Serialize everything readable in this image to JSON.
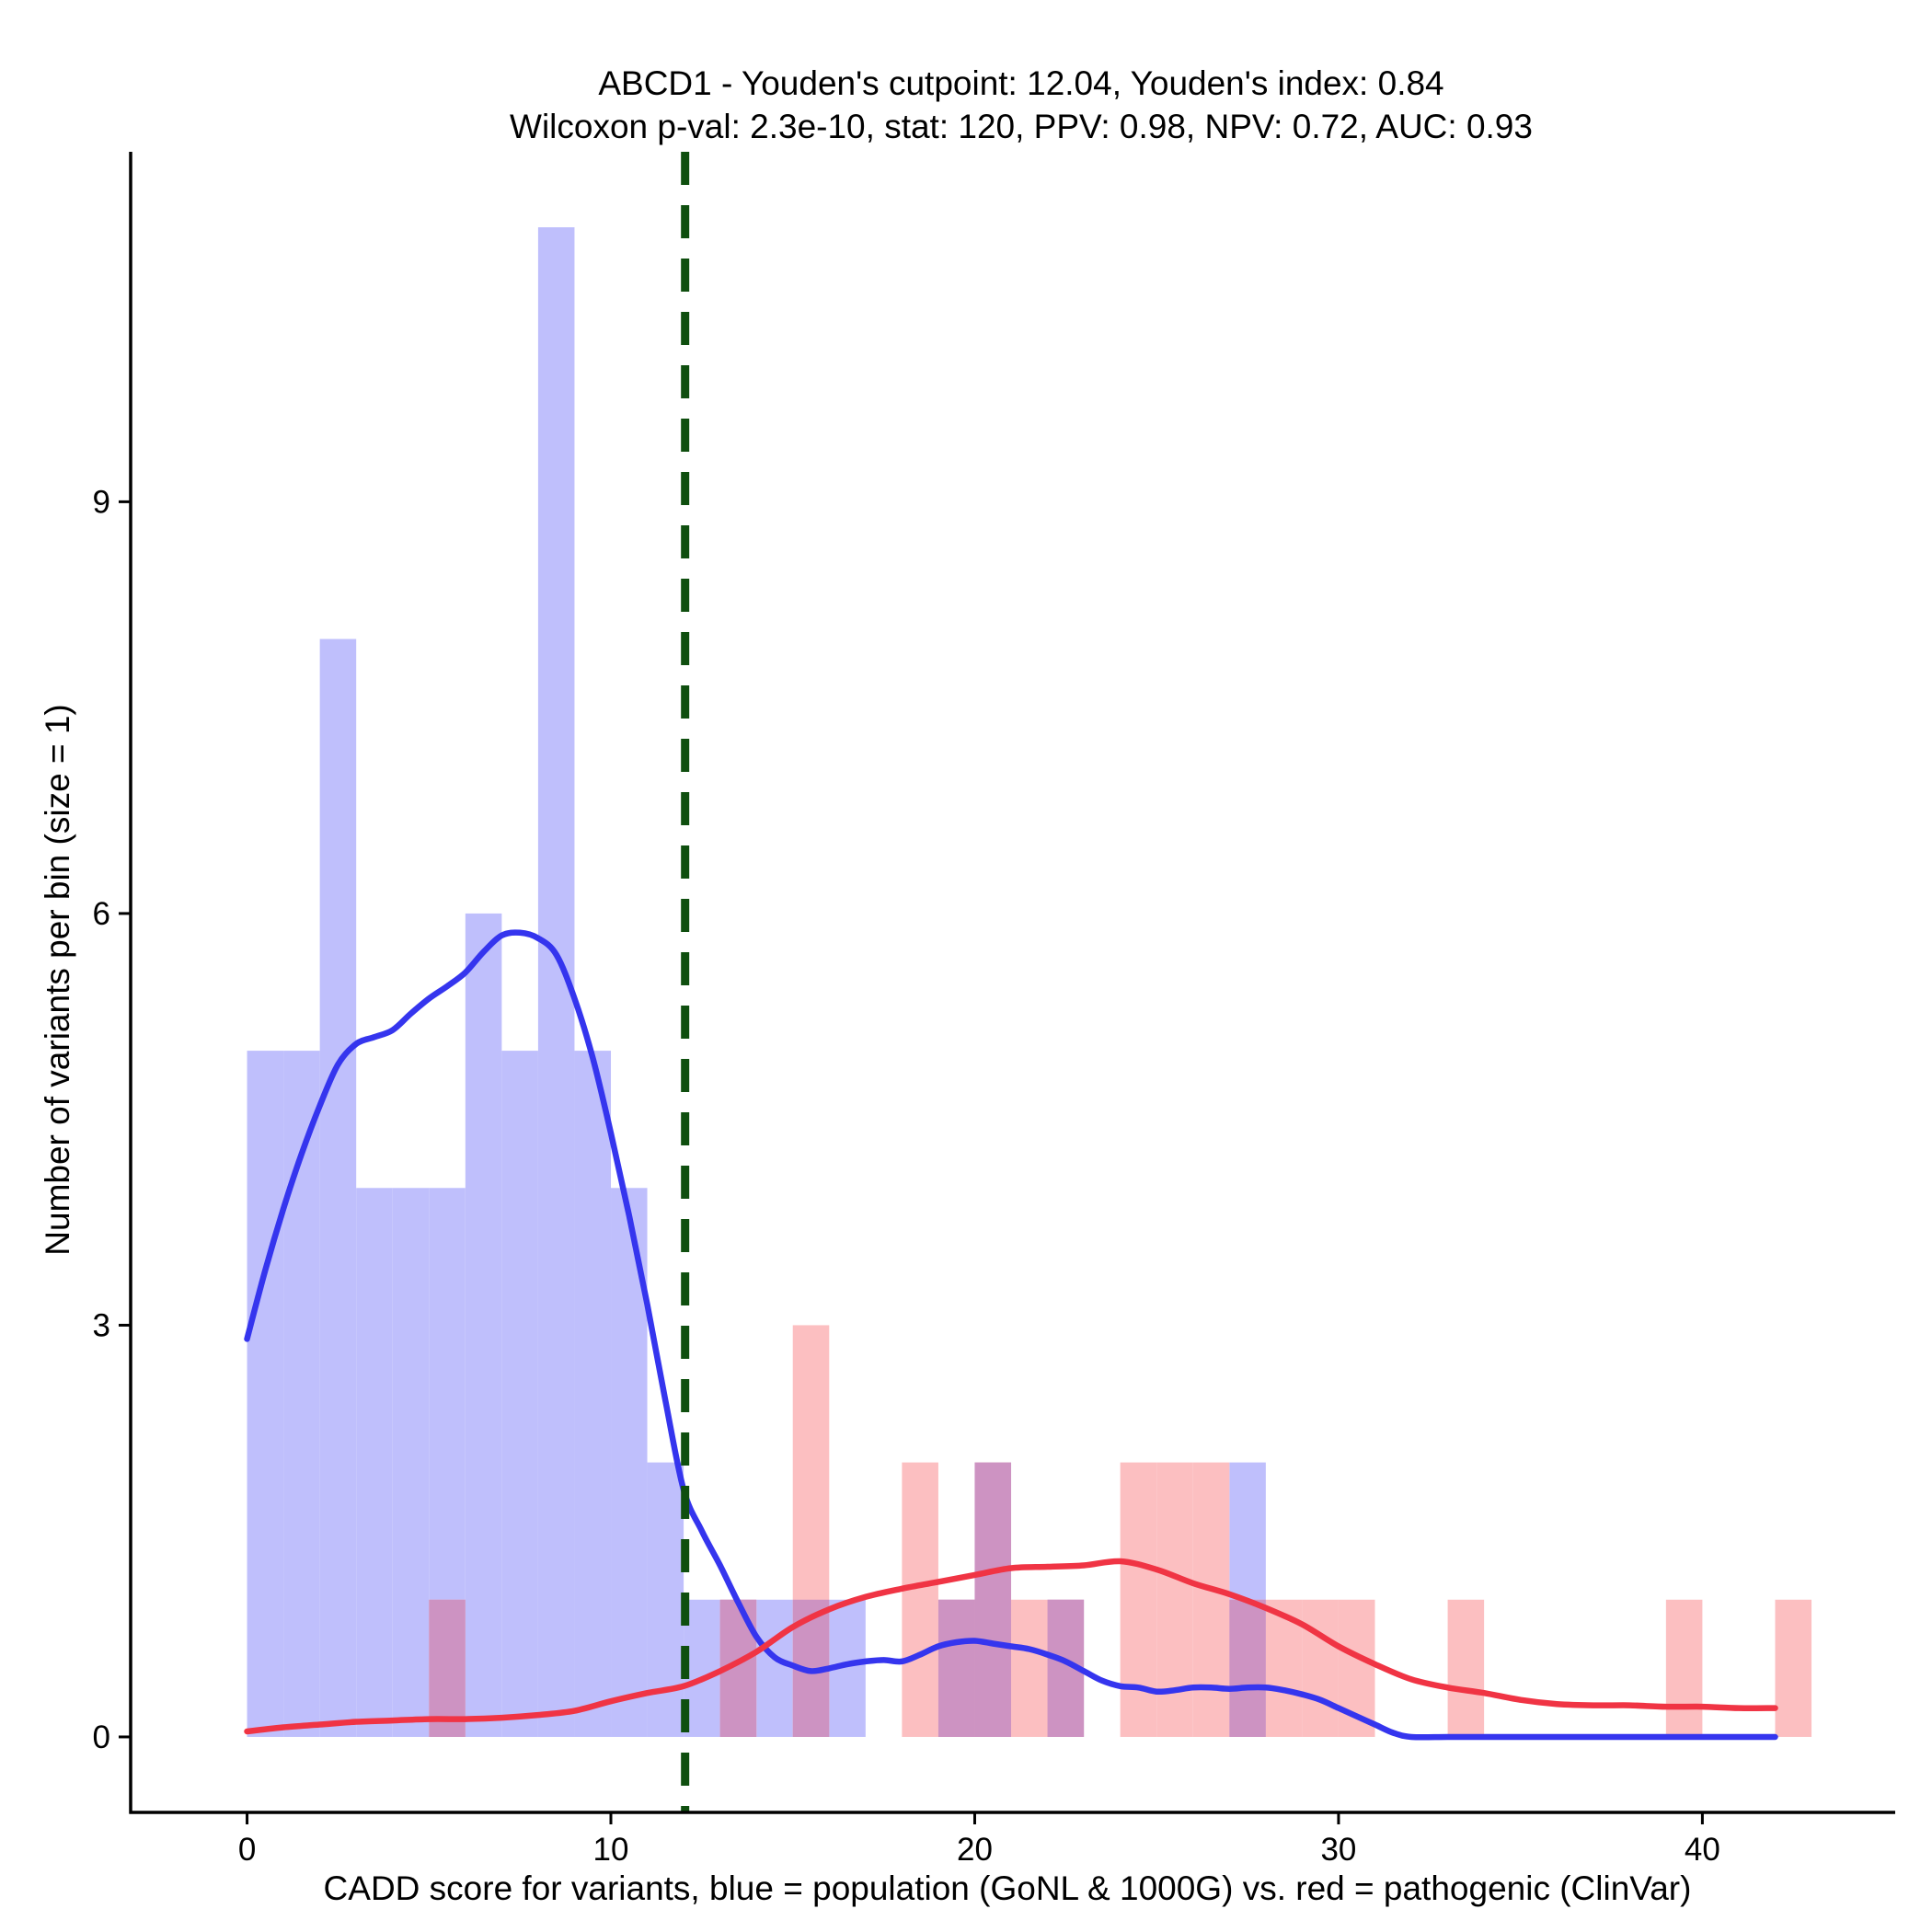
{
  "chart_data": {
    "type": "histogram",
    "title_line1": "ABCD1 - Youden's cutpoint: 12.04, Youden's index: 0.84",
    "title_line2": "Wilcoxon p-val: 2.3e-10, stat: 120, PPV: 0.98, NPV: 0.72, AUC: 0.93",
    "xlabel": "CADD score for variants, blue = population (GoNL & 1000G) vs. red = pathogenic (ClinVar)",
    "ylabel": "Number of variants per bin (size = 1)",
    "xlim": [
      -3.2,
      45.3
    ],
    "ylim": [
      -0.55,
      11.55
    ],
    "x_ticks": [
      0,
      10,
      20,
      30,
      40
    ],
    "y_ticks": [
      0,
      3,
      6,
      9
    ],
    "bin_width": 1,
    "cutpoint": 12.04,
    "colors": {
      "population_bar": "#bfbffc",
      "pathogenic_bar": "#fcbfc1",
      "overlap_bar": "#cd93c2",
      "population_curve": "#3535ee",
      "pathogenic_curve": "#f03444",
      "cutpoint_line": "#0f4f0f",
      "axis": "#000000"
    },
    "series": [
      {
        "name": "population (GoNL & 1000G)",
        "bins": [
          {
            "x": 0,
            "count": 5
          },
          {
            "x": 1,
            "count": 5
          },
          {
            "x": 2,
            "count": 8
          },
          {
            "x": 3,
            "count": 4
          },
          {
            "x": 4,
            "count": 4
          },
          {
            "x": 5,
            "count": 4
          },
          {
            "x": 6,
            "count": 6
          },
          {
            "x": 7,
            "count": 5
          },
          {
            "x": 8,
            "count": 11
          },
          {
            "x": 9,
            "count": 5
          },
          {
            "x": 10,
            "count": 4
          },
          {
            "x": 11,
            "count": 2
          },
          {
            "x": 12,
            "count": 1
          },
          {
            "x": 13,
            "count": 1
          },
          {
            "x": 14,
            "count": 1
          },
          {
            "x": 15,
            "count": 1
          },
          {
            "x": 16,
            "count": 1
          },
          {
            "x": 19,
            "count": 1
          },
          {
            "x": 20,
            "count": 2
          },
          {
            "x": 22,
            "count": 1
          },
          {
            "x": 27,
            "count": 2
          }
        ]
      },
      {
        "name": "pathogenic (ClinVar)",
        "bins": [
          {
            "x": 5,
            "count": 1
          },
          {
            "x": 13,
            "count": 1
          },
          {
            "x": 15,
            "count": 3
          },
          {
            "x": 18,
            "count": 2
          },
          {
            "x": 19,
            "count": 1
          },
          {
            "x": 20,
            "count": 2
          },
          {
            "x": 21,
            "count": 1
          },
          {
            "x": 22,
            "count": 1
          },
          {
            "x": 24,
            "count": 2
          },
          {
            "x": 25,
            "count": 2
          },
          {
            "x": 26,
            "count": 2
          },
          {
            "x": 27,
            "count": 1
          },
          {
            "x": 28,
            "count": 1
          },
          {
            "x": 29,
            "count": 1
          },
          {
            "x": 30,
            "count": 1
          },
          {
            "x": 33,
            "count": 1
          },
          {
            "x": 39,
            "count": 1
          },
          {
            "x": 42,
            "count": 1
          }
        ]
      }
    ],
    "density_curves": [
      {
        "name": "population density",
        "points": [
          [
            0,
            2.9
          ],
          [
            0.5,
            3.4
          ],
          [
            1,
            3.85
          ],
          [
            1.5,
            4.25
          ],
          [
            2,
            4.6
          ],
          [
            2.5,
            4.9
          ],
          [
            3,
            5.05
          ],
          [
            3.5,
            5.1
          ],
          [
            4,
            5.15
          ],
          [
            4.5,
            5.27
          ],
          [
            5,
            5.38
          ],
          [
            5.5,
            5.47
          ],
          [
            6,
            5.57
          ],
          [
            6.5,
            5.72
          ],
          [
            7,
            5.84
          ],
          [
            7.5,
            5.86
          ],
          [
            8,
            5.82
          ],
          [
            8.5,
            5.7
          ],
          [
            9,
            5.38
          ],
          [
            9.5,
            4.95
          ],
          [
            10,
            4.4
          ],
          [
            10.5,
            3.8
          ],
          [
            11,
            3.15
          ],
          [
            11.5,
            2.45
          ],
          [
            12,
            1.8
          ],
          [
            12.5,
            1.5
          ],
          [
            13,
            1.25
          ],
          [
            13.5,
            0.98
          ],
          [
            14,
            0.73
          ],
          [
            14.5,
            0.58
          ],
          [
            15,
            0.52
          ],
          [
            15.5,
            0.48
          ],
          [
            16,
            0.5
          ],
          [
            16.5,
            0.53
          ],
          [
            17,
            0.55
          ],
          [
            17.5,
            0.56
          ],
          [
            18,
            0.55
          ],
          [
            18.5,
            0.6
          ],
          [
            19,
            0.66
          ],
          [
            19.5,
            0.69
          ],
          [
            20,
            0.7
          ],
          [
            20.5,
            0.68
          ],
          [
            21,
            0.66
          ],
          [
            21.5,
            0.64
          ],
          [
            22,
            0.6
          ],
          [
            22.5,
            0.55
          ],
          [
            23,
            0.48
          ],
          [
            23.5,
            0.41
          ],
          [
            24,
            0.37
          ],
          [
            24.5,
            0.36
          ],
          [
            25,
            0.33
          ],
          [
            25.5,
            0.34
          ],
          [
            26,
            0.36
          ],
          [
            26.5,
            0.36
          ],
          [
            27,
            0.35
          ],
          [
            27.5,
            0.36
          ],
          [
            28,
            0.36
          ],
          [
            28.5,
            0.34
          ],
          [
            29,
            0.31
          ],
          [
            29.5,
            0.27
          ],
          [
            30,
            0.21
          ],
          [
            30.5,
            0.15
          ],
          [
            31,
            0.09
          ],
          [
            31.5,
            0.03
          ],
          [
            32,
            0.0
          ],
          [
            33,
            0.0
          ],
          [
            34,
            0.0
          ],
          [
            35,
            0.0
          ],
          [
            36,
            0.0
          ],
          [
            37,
            0.0
          ],
          [
            38,
            0.0
          ],
          [
            39,
            0.0
          ],
          [
            40,
            0.0
          ],
          [
            41,
            0.0
          ],
          [
            42,
            0.0
          ]
        ]
      },
      {
        "name": "pathogenic density",
        "points": [
          [
            0,
            0.04
          ],
          [
            1,
            0.07
          ],
          [
            2,
            0.09
          ],
          [
            3,
            0.11
          ],
          [
            4,
            0.12
          ],
          [
            5,
            0.13
          ],
          [
            6,
            0.13
          ],
          [
            7,
            0.14
          ],
          [
            8,
            0.16
          ],
          [
            9,
            0.19
          ],
          [
            10,
            0.26
          ],
          [
            11,
            0.32
          ],
          [
            12,
            0.37
          ],
          [
            13,
            0.48
          ],
          [
            14,
            0.62
          ],
          [
            15,
            0.8
          ],
          [
            16,
            0.93
          ],
          [
            17,
            1.02
          ],
          [
            18,
            1.08
          ],
          [
            19,
            1.13
          ],
          [
            20,
            1.18
          ],
          [
            21,
            1.23
          ],
          [
            22,
            1.24
          ],
          [
            23,
            1.25
          ],
          [
            24,
            1.28
          ],
          [
            25,
            1.22
          ],
          [
            26,
            1.12
          ],
          [
            27,
            1.04
          ],
          [
            28,
            0.94
          ],
          [
            29,
            0.82
          ],
          [
            30,
            0.66
          ],
          [
            31,
            0.53
          ],
          [
            32,
            0.42
          ],
          [
            33,
            0.36
          ],
          [
            34,
            0.32
          ],
          [
            35,
            0.27
          ],
          [
            36,
            0.24
          ],
          [
            37,
            0.23
          ],
          [
            38,
            0.23
          ],
          [
            39,
            0.22
          ],
          [
            40,
            0.22
          ],
          [
            41,
            0.21
          ],
          [
            42,
            0.21
          ]
        ]
      }
    ]
  }
}
